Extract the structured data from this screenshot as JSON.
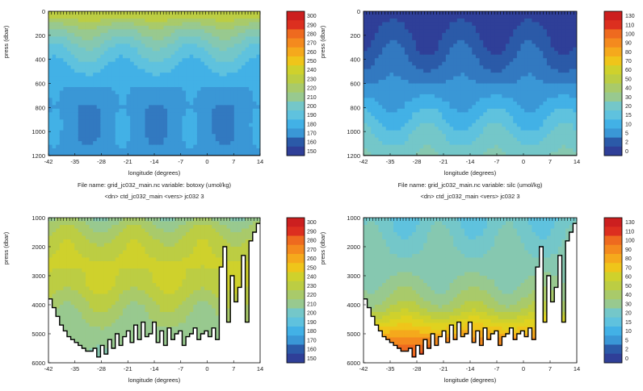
{
  "colors": {
    "scale": [
      "#2f3f98",
      "#2b5aa8",
      "#3279c0",
      "#3a97d6",
      "#42b1e6",
      "#5fc2de",
      "#74c7c9",
      "#86c8b0",
      "#98c98f",
      "#a9ca6a",
      "#bccd43",
      "#cfd12c",
      "#e0d21f",
      "#efc51a",
      "#f5a91c",
      "#f48a1e",
      "#ee6a1f",
      "#e64a20",
      "#dc2f1f",
      "#cc1f1f"
    ],
    "land": "#ffffff",
    "contour": "#000000"
  },
  "chart_data": [
    {
      "type": "heatmap",
      "panel": "top-left",
      "xlabel": "longitude (degrees)",
      "ylabel": "press (dbar)",
      "x_ticks": [
        "-42",
        "-35",
        "-28",
        "-21",
        "-14",
        "-7",
        "0",
        "7",
        "14"
      ],
      "y_ticks": [
        "0",
        "200",
        "400",
        "600",
        "800",
        "1000",
        "1200"
      ],
      "xlim": [
        -42,
        14
      ],
      "ylim": [
        0,
        1200
      ],
      "colorbar": [
        "300",
        "290",
        "280",
        "270",
        "260",
        "250",
        "240",
        "230",
        "220",
        "210",
        "200",
        "190",
        "180",
        "170",
        "160",
        "150"
      ],
      "colorbar_range": [
        145,
        305
      ],
      "bottom": [
        1200,
        1200,
        1200,
        1200,
        1200,
        1200,
        1200,
        1200,
        1200,
        1200,
        1200,
        1200,
        1200,
        1200,
        1200,
        1200,
        1200,
        1200,
        1200,
        1200,
        1200,
        1200,
        1200,
        1200,
        1200,
        1200,
        1200,
        1200,
        1200,
        1200,
        1200,
        1200,
        1200,
        1200,
        1200,
        1200,
        1200,
        1200,
        1200,
        1200,
        1200,
        1200,
        1200,
        1200,
        1200,
        1200,
        1200,
        1200,
        1200,
        1200,
        1200,
        1200,
        1200,
        1200,
        1200,
        1200,
        1200
      ],
      "profile": {
        "depth": [
          0,
          60,
          150,
          300,
          450,
          600,
          800,
          1000,
          1200
        ],
        "value": [
          232,
          226,
          212,
          196,
          186,
          178,
          172,
          172,
          174
        ]
      }
    },
    {
      "type": "heatmap",
      "panel": "top-right",
      "xlabel": "longitude (degrees)",
      "ylabel": "press (dbar)",
      "x_ticks": [
        "-42",
        "-35",
        "-28",
        "-21",
        "-14",
        "-7",
        "0",
        "7",
        "14"
      ],
      "y_ticks": [
        "0",
        "200",
        "400",
        "600",
        "800",
        "1000",
        "1200"
      ],
      "xlim": [
        -42,
        14
      ],
      "ylim": [
        0,
        1200
      ],
      "colorbar": [
        "130",
        "110",
        "100",
        "90",
        "80",
        "70",
        "60",
        "50",
        "40",
        "30",
        "20",
        "15",
        "10",
        "5",
        "2",
        "0"
      ],
      "colorbar_range": [
        -2,
        136
      ],
      "bottom": [
        1200,
        1200,
        1200,
        1200,
        1200,
        1200,
        1200,
        1200,
        1200,
        1200,
        1200,
        1200,
        1200,
        1200,
        1200,
        1200,
        1200,
        1200,
        1200,
        1200,
        1200,
        1200,
        1200,
        1200,
        1200,
        1200,
        1200,
        1200,
        1200,
        1200,
        1200,
        1200,
        1200,
        1200,
        1200,
        1200,
        1200,
        1200,
        1200,
        1200,
        1200,
        1200,
        1200,
        1200,
        1200,
        1200,
        1200,
        1200,
        1200,
        1200,
        1200,
        1200,
        1200,
        1200,
        1200,
        1200,
        1200
      ],
      "profile": {
        "depth": [
          0,
          150,
          300,
          450,
          600,
          750,
          900,
          1050,
          1200
        ],
        "value": [
          2,
          4,
          8,
          13,
          19,
          26,
          33,
          40,
          46
        ]
      }
    },
    {
      "type": "heatmap",
      "panel": "bottom-left",
      "xlabel": "longitude (degrees)",
      "ylabel": "press (dbar)",
      "x_ticks": [
        "-42",
        "-35",
        "-28",
        "-21",
        "-14",
        "-7",
        "0",
        "7",
        "14"
      ],
      "y_ticks": [
        "1000",
        "2000",
        "3000",
        "4000",
        "5000",
        "6000"
      ],
      "xlim": [
        -42,
        14
      ],
      "ylim": [
        1000,
        6000
      ],
      "colorbar": [
        "300",
        "290",
        "280",
        "270",
        "260",
        "250",
        "240",
        "230",
        "220",
        "210",
        "200",
        "190",
        "180",
        "170",
        "160",
        "150"
      ],
      "colorbar_range": [
        145,
        305
      ],
      "bottom": [
        3800,
        4100,
        4400,
        4700,
        4900,
        5100,
        5200,
        5300,
        5400,
        5500,
        5600,
        5600,
        5500,
        5800,
        5400,
        5700,
        5200,
        5500,
        5000,
        5400,
        5100,
        4900,
        5300,
        4700,
        5200,
        4600,
        5100,
        5000,
        4600,
        5300,
        4900,
        5400,
        4800,
        5200,
        5000,
        4900,
        5400,
        5100,
        5000,
        4800,
        5200,
        5000,
        4900,
        5100,
        4800,
        5200,
        2700,
        2000,
        4600,
        3000,
        3900,
        3400,
        2300,
        4600,
        1800,
        1500,
        1200
      ],
      "profile": {
        "depth": [
          1000,
          1300,
          1800,
          2500,
          3300,
          4000,
          4800,
          5500,
          6000
        ],
        "value": [
          212,
          220,
          228,
          234,
          232,
          222,
          214,
          210,
          208
        ]
      }
    },
    {
      "type": "heatmap",
      "panel": "bottom-right",
      "xlabel": "longitude (degrees)",
      "ylabel": "press (dbar)",
      "x_ticks": [
        "-42",
        "-35",
        "-28",
        "-21",
        "-14",
        "-7",
        "0",
        "7",
        "14"
      ],
      "y_ticks": [
        "1000",
        "2000",
        "3000",
        "4000",
        "5000",
        "6000"
      ],
      "xlim": [
        -42,
        14
      ],
      "ylim": [
        1000,
        6000
      ],
      "colorbar": [
        "130",
        "110",
        "100",
        "90",
        "80",
        "70",
        "60",
        "50",
        "40",
        "30",
        "20",
        "15",
        "10",
        "5",
        "2",
        "0"
      ],
      "colorbar_range": [
        -2,
        136
      ],
      "bottom": [
        3800,
        4100,
        4400,
        4700,
        4900,
        5100,
        5200,
        5300,
        5400,
        5500,
        5600,
        5600,
        5500,
        5800,
        5400,
        5700,
        5200,
        5500,
        5000,
        5400,
        5100,
        4900,
        5300,
        4700,
        5200,
        4600,
        5100,
        5000,
        4600,
        5300,
        4900,
        5400,
        4800,
        5200,
        5000,
        4900,
        5400,
        5100,
        5000,
        4800,
        5200,
        5000,
        4900,
        5100,
        4800,
        5200,
        2700,
        2000,
        4600,
        3000,
        3900,
        3400,
        2300,
        4600,
        1800,
        1500,
        1200
      ],
      "profile": {
        "depth": [
          1000,
          1500,
          2200,
          3000,
          3600,
          4100,
          4600,
          5200,
          6000
        ],
        "value": [
          40,
          43,
          47,
          52,
          58,
          66,
          82,
          104,
          125
        ]
      }
    }
  ],
  "captions": {
    "left_line1": "File name:  grid_jc032_main.nc        variable:  botoxy (umol/kg)",
    "left_line2": "<dn>  ctd_jc032_main  <vers>  jc032     3",
    "right_line1": "File name:  grid_jc032_main.nc        variable:  silc (umol/kg)",
    "right_line2": "<dn>  ctd_jc032_main  <vers>  jc032     3"
  }
}
